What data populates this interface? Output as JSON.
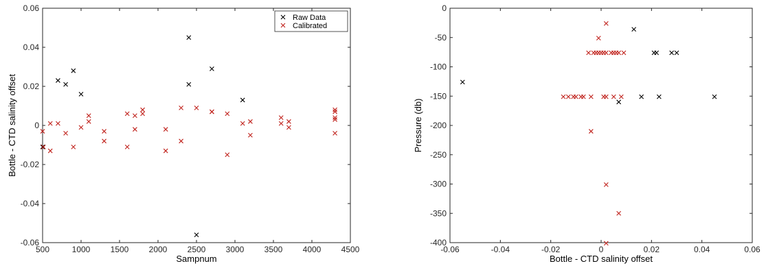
{
  "colors": {
    "raw": "#000000",
    "calibrated": "#c0211b"
  },
  "chart_data": [
    {
      "type": "scatter",
      "marker": "x",
      "xlabel": "Sampnum",
      "ylabel": "Bottle - CTD salinity offset",
      "xlim": [
        500,
        4500
      ],
      "ylim": [
        -0.06,
        0.06
      ],
      "xticks": [
        500,
        1000,
        1500,
        2000,
        2500,
        3000,
        3500,
        4000,
        4500
      ],
      "xtick_labels": [
        "500",
        "1000",
        "1500",
        "2000",
        "2500",
        "3000",
        "3500",
        "4000",
        "4500"
      ],
      "yticks": [
        -0.06,
        -0.04,
        -0.02,
        0,
        0.02,
        0.04,
        0.06
      ],
      "ytick_labels": [
        "-0.06",
        "-0.04",
        "-0.02",
        "0",
        "0.02",
        "0.04",
        "0.06"
      ],
      "grid": false,
      "legend": {
        "placement": "top-right",
        "entries": [
          "Raw Data",
          "Calibrated"
        ]
      },
      "series": [
        {
          "name": "Raw Data",
          "color": "#000000",
          "x": [
            500,
            510,
            700,
            800,
            900,
            1000,
            2400,
            2400,
            2500,
            2700,
            3100
          ],
          "y": [
            -0.011,
            -0.011,
            0.023,
            0.021,
            0.028,
            0.016,
            0.045,
            0.021,
            -0.056,
            0.029,
            0.013
          ]
        },
        {
          "name": "Calibrated",
          "color": "#c0211b",
          "x": [
            500,
            510,
            600,
            600,
            700,
            800,
            900,
            1000,
            1100,
            1100,
            1300,
            1300,
            1600,
            1600,
            1700,
            1700,
            1800,
            1800,
            2100,
            2100,
            2300,
            2300,
            2500,
            2700,
            2700,
            2900,
            2900,
            3100,
            3200,
            3200,
            3600,
            3600,
            3700,
            3700,
            4300,
            4300,
            4300,
            4300,
            4300
          ],
          "y": [
            -0.003,
            -0.011,
            0.001,
            -0.013,
            0.001,
            -0.004,
            -0.011,
            -0.001,
            0.005,
            0.002,
            -0.003,
            -0.008,
            0.006,
            -0.011,
            0.005,
            -0.002,
            0.008,
            0.006,
            -0.002,
            -0.013,
            0.009,
            -0.008,
            0.009,
            0.007,
            0.007,
            0.006,
            -0.015,
            0.001,
            0.002,
            -0.005,
            0.004,
            0.001,
            0.002,
            -0.001,
            0.008,
            0.007,
            0.004,
            0.003,
            -0.004
          ]
        }
      ]
    },
    {
      "type": "scatter",
      "marker": "x",
      "xlabel": "Bottle - CTD salinity offset",
      "ylabel": "Pressure (db)",
      "xlim": [
        -0.06,
        0.06
      ],
      "ylim": [
        -400,
        0
      ],
      "xticks": [
        -0.06,
        -0.04,
        -0.02,
        0,
        0.02,
        0.04,
        0.06
      ],
      "xtick_labels": [
        "-0.06",
        "-0.04",
        "-0.02",
        "0",
        "0.02",
        "0.04",
        "0.06"
      ],
      "yticks": [
        -400,
        -350,
        -300,
        -250,
        -200,
        -150,
        -100,
        -50,
        0
      ],
      "ytick_labels": [
        "-400",
        "-350",
        "-300",
        "-250",
        "-200",
        "-150",
        "-100",
        "-50",
        "0"
      ],
      "grid": false,
      "series": [
        {
          "name": "Raw Data",
          "color": "#000000",
          "x": [
            -0.055,
            0.013,
            0.021,
            0.022,
            0.028,
            0.03,
            0.016,
            0.023,
            0.045,
            0.007
          ],
          "y": [
            -126,
            -36,
            -76,
            -76,
            -76,
            -76,
            -151,
            -151,
            -151,
            -160
          ]
        },
        {
          "name": "Calibrated",
          "color": "#c0211b",
          "x": [
            0.002,
            -0.001,
            -0.005,
            -0.003,
            -0.002,
            -0.001,
            0.0,
            0.001,
            0.002,
            0.004,
            0.005,
            0.006,
            0.007,
            0.009,
            -0.015,
            -0.013,
            -0.011,
            -0.01,
            -0.008,
            -0.007,
            -0.004,
            0.001,
            0.002,
            0.005,
            0.008,
            -0.004,
            0.002,
            0.007,
            0.002
          ],
          "y": [
            -26,
            -51,
            -76,
            -76,
            -76,
            -76,
            -76,
            -76,
            -76,
            -76,
            -76,
            -76,
            -76,
            -76,
            -151,
            -151,
            -151,
            -151,
            -151,
            -151,
            -151,
            -151,
            -151,
            -151,
            -151,
            -210,
            -301,
            -350,
            -401
          ]
        }
      ]
    }
  ]
}
